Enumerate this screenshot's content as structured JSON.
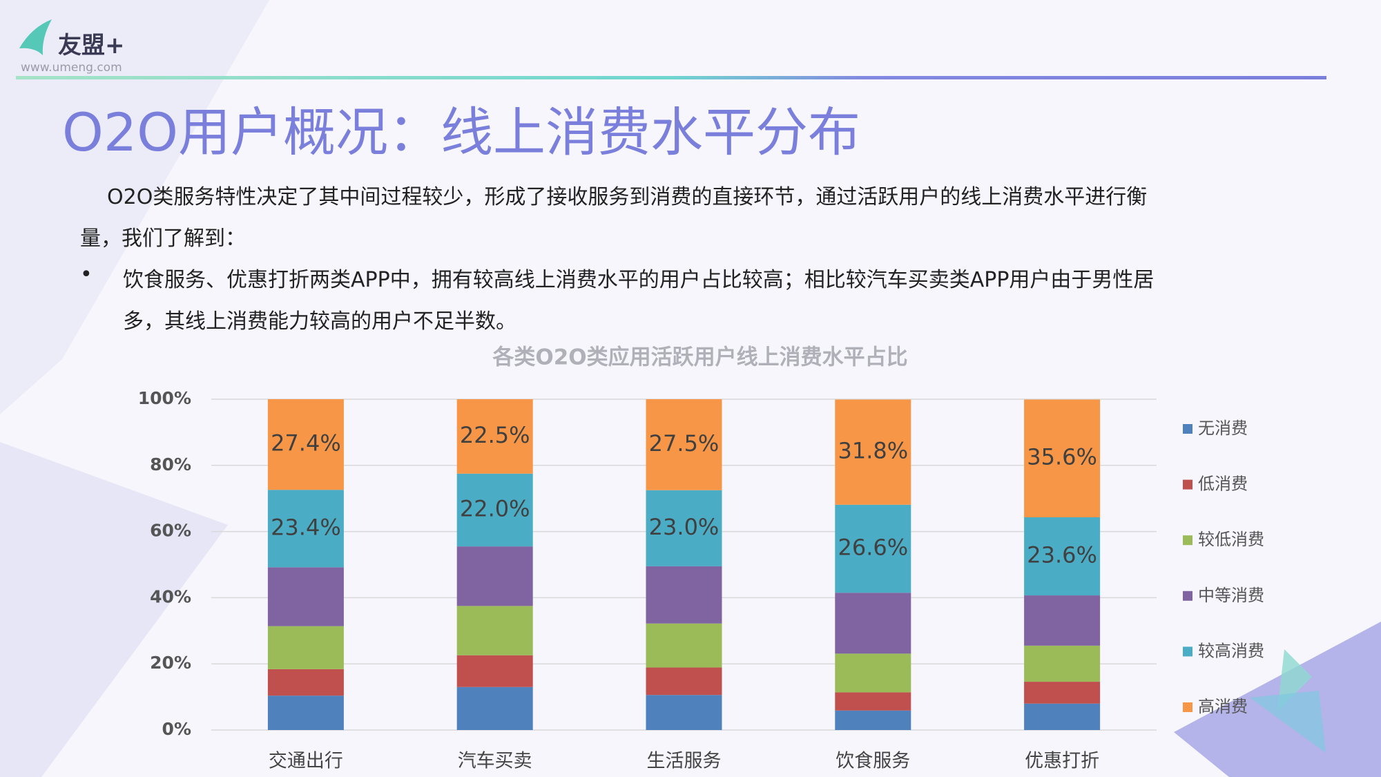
{
  "logo": {
    "brand": "友盟+",
    "url": "www.umeng.com"
  },
  "header": {
    "title": "O2O用户概况：线上消费水平分布"
  },
  "body": {
    "lines": [
      "O2O类服务特性决定了其中间过程较少，形成了接收服务到消费的直接环节，通过活跃用户的线上消费水平进行衡",
      "量，我们了解到："
    ],
    "bullet": {
      "marker": "•",
      "lines": [
        "饮食服务、优惠打折两类APP中，拥有较高线上消费水平的用户占比较高；相比较汽车买卖类APP用户由于男性居",
        "多，其线上消费能力较高的用户不足半数。"
      ]
    }
  },
  "chart_data": {
    "type": "stacked_bar",
    "title": "各类O2O类应用活跃用户线上消费水平占比",
    "categories": [
      "交通出行",
      "汽车买卖",
      "生活服务",
      "饮食服务",
      "优惠打折"
    ],
    "series": [
      {
        "name": "无消费",
        "color": "#4f81bd",
        "values": [
          10.4,
          13.0,
          10.6,
          5.9,
          8.0
        ]
      },
      {
        "name": "低消费",
        "color": "#c0504d",
        "values": [
          8.0,
          9.6,
          8.3,
          5.5,
          6.6
        ]
      },
      {
        "name": "较低消费",
        "color": "#9bbb59",
        "values": [
          13.0,
          14.9,
          13.3,
          11.7,
          10.9
        ]
      },
      {
        "name": "中等消费",
        "color": "#8064a2",
        "values": [
          17.8,
          18.0,
          17.3,
          18.4,
          15.2
        ]
      },
      {
        "name": "较高消费",
        "color": "#4bacc6",
        "values": [
          23.4,
          22.0,
          23.0,
          26.6,
          23.6
        ],
        "value_labels": [
          "23.4%",
          "22.0%",
          "23.0%",
          "26.6%",
          "23.6%"
        ]
      },
      {
        "name": "高消费",
        "color": "#f79646",
        "values": [
          27.4,
          22.5,
          27.5,
          31.8,
          35.6
        ],
        "value_labels": [
          "27.4%",
          "22.5%",
          "27.5%",
          "31.8%",
          "35.6%"
        ]
      }
    ],
    "ylim": [
      0,
      100
    ],
    "yticks": [
      {
        "value": 0,
        "label": "0%"
      },
      {
        "value": 20,
        "label": "20%"
      },
      {
        "value": 40,
        "label": "40%"
      },
      {
        "value": 60,
        "label": "60%"
      },
      {
        "value": 80,
        "label": "80%"
      },
      {
        "value": 100,
        "label": "100%"
      }
    ],
    "grid": true,
    "legend": "right"
  }
}
